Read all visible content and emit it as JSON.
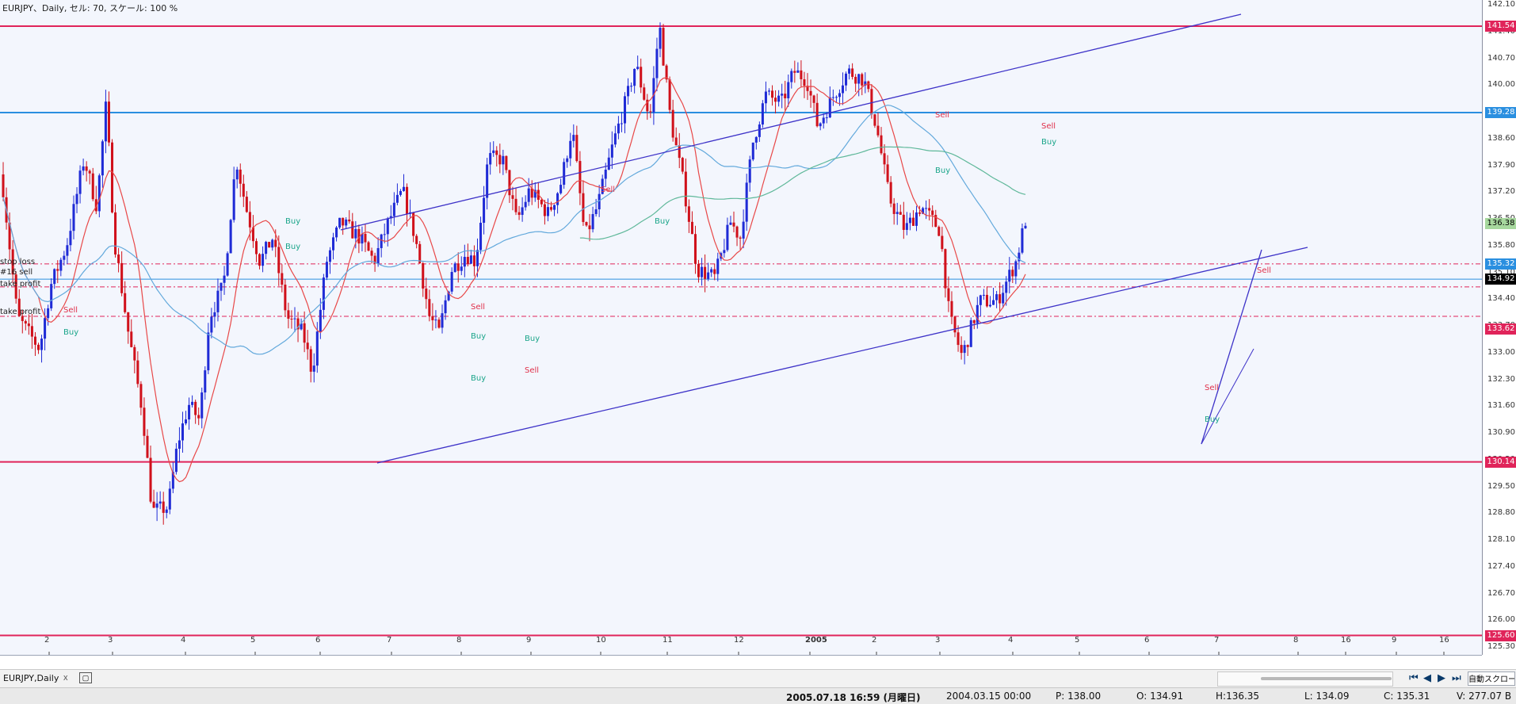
{
  "header": {
    "text": "EURJPY、Daily, セル: 70, スケール: 100 %"
  },
  "colors": {
    "bull": "#1f2bd6",
    "bear": "#d0111b",
    "level_red": "#e0245a",
    "level_blue": "#2a8fe0",
    "channel": "#3d32c8",
    "ma_red": "#e84848",
    "ma_blue": "#63a9dc",
    "ma_green": "#5fb89a"
  },
  "chart_data": {
    "type": "candlestick",
    "symbol": "EURJPY",
    "timeframe": "Daily",
    "y_ticks": [
      "142.10",
      "141.40",
      "140.70",
      "140.00",
      "139.30",
      "138.60",
      "137.90",
      "137.20",
      "136.50",
      "135.80",
      "135.10",
      "134.40",
      "133.70",
      "133.00",
      "132.30",
      "131.60",
      "130.90",
      "130.20",
      "129.50",
      "128.80",
      "128.10",
      "127.40",
      "126.70",
      "126.00",
      "125.30"
    ],
    "ylim": [
      125.3,
      142.1
    ],
    "x_ticks": [
      "2",
      "3",
      "4",
      "5",
      "6",
      "7",
      "8",
      "9",
      "10",
      "11",
      "12",
      "2005",
      "2",
      "3",
      "4",
      "5",
      "6",
      "7",
      "8",
      "16",
      "9",
      "16"
    ],
    "price_tags": [
      {
        "label": "141.54",
        "value": 141.54,
        "color": "#e0245a"
      },
      {
        "label": "139.28",
        "value": 139.28,
        "color": "#2a8fe0"
      },
      {
        "label": "136.38",
        "value": 136.38,
        "color": "#a7d89e"
      },
      {
        "label": "135.32",
        "value": 135.32,
        "color": "#2a8fe0"
      },
      {
        "label": "134.92",
        "value": 134.92,
        "color": "#000000"
      },
      {
        "label": "133.62",
        "value": 133.62,
        "color": "#e0245a"
      },
      {
        "label": "130.14",
        "value": 130.14,
        "color": "#e0245a"
      },
      {
        "label": "125.60",
        "value": 125.6,
        "color": "#e0245a"
      }
    ],
    "level_labels": [
      "stop loss",
      "#16 sell",
      "take profit",
      "take profit"
    ],
    "signal_labels": [
      "Sell",
      "Buy"
    ],
    "levels_horizontal": [
      141.54,
      139.28,
      130.14,
      125.6,
      134.92
    ]
  },
  "tab": {
    "label": "EURJPY,Daily",
    "close": "x"
  },
  "toolbar": {
    "auto_scroll": "自動スクロール"
  },
  "status": {
    "datetime": "2005.07.18 16:59 (月曜日)",
    "cursor_time": "2004.03.15 00:00",
    "p": "P: 138.00",
    "o": "O: 134.91",
    "h": "H:136.35",
    "l": "L: 134.09",
    "c": "C: 135.31",
    "v": "V: 277.07 B"
  }
}
